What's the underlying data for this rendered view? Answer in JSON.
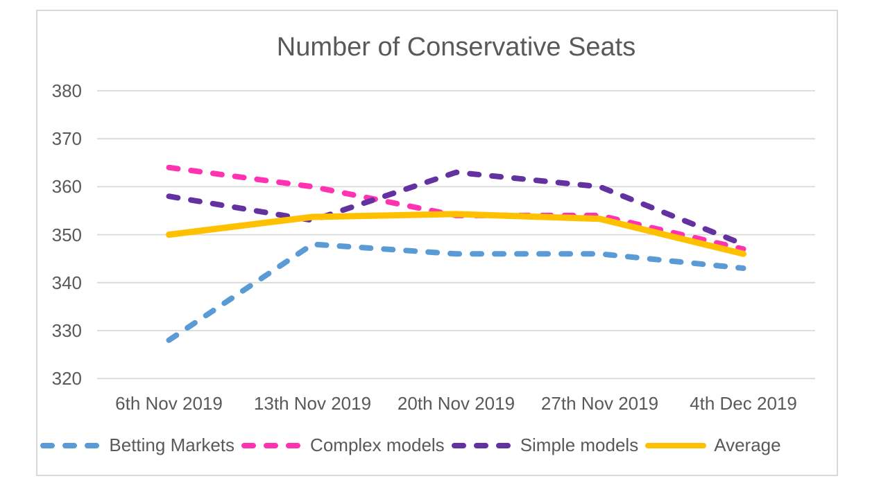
{
  "page": {
    "background": "#FFFFFF"
  },
  "chart": {
    "frame_border_color": "#D9D9D9",
    "grid_color": "#D9D9D9",
    "text_color": "#595959"
  },
  "chart_data": {
    "type": "line",
    "title": "Number of Conservative Seats",
    "categories": [
      "6th Nov 2019",
      "13th Nov 2019",
      "20th Nov 2019",
      "27th Nov 2019",
      "4th Dec 2019"
    ],
    "series": [
      {
        "name": "Betting Markets",
        "color": "#5B9BD5",
        "line_style": "dashed",
        "values": [
          328,
          348,
          346,
          346,
          343
        ]
      },
      {
        "name": "Complex models",
        "color": "#FF33B1",
        "line_style": "dashed",
        "values": [
          364,
          360,
          354,
          354,
          347
        ]
      },
      {
        "name": "Simple models",
        "color": "#6332A0",
        "line_style": "dashed",
        "values": [
          358,
          353,
          363,
          360,
          348
        ]
      },
      {
        "name": "Average",
        "color": "#FFC000",
        "line_style": "solid",
        "values": [
          350,
          353.7,
          354.3,
          353.3,
          346
        ]
      }
    ],
    "y_ticks": [
      320,
      330,
      340,
      350,
      360,
      370,
      380
    ],
    "ylim": [
      320,
      380
    ],
    "xlabel": "",
    "ylabel": "",
    "grid": true,
    "legend_position": "bottom"
  }
}
